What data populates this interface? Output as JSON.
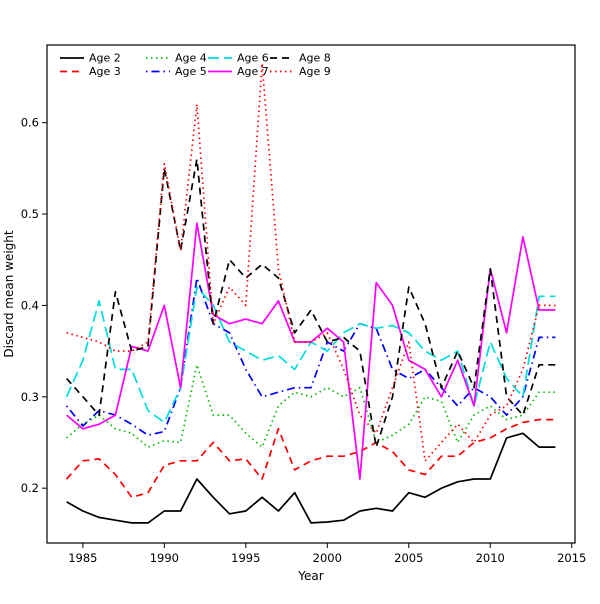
{
  "chart_data": {
    "type": "line",
    "title": "",
    "xlabel": "Year",
    "ylabel": "Discard mean weight",
    "x_start": 1984,
    "x_end": 2014,
    "xlim": [
      1982.8,
      2015.2
    ],
    "ylim": [
      0.14,
      0.685
    ],
    "x_ticks": [
      1985,
      1990,
      1995,
      2000,
      2005,
      2010,
      2015
    ],
    "y_ticks": [
      0.2,
      0.3,
      0.4,
      0.5,
      0.6
    ],
    "grid": false,
    "legend_position": "top-left",
    "series": [
      {
        "name": "Age 2",
        "color": "#000000",
        "dash": "solid",
        "values": [
          0.185,
          0.175,
          0.168,
          0.165,
          0.162,
          0.162,
          0.175,
          0.175,
          0.21,
          0.19,
          0.172,
          0.175,
          0.19,
          0.175,
          0.195,
          0.162,
          0.163,
          0.165,
          0.175,
          0.178,
          0.175,
          0.195,
          0.19,
          0.2,
          0.207,
          0.21,
          0.21,
          0.255,
          0.26,
          0.245,
          0.245
        ]
      },
      {
        "name": "Age 3",
        "color": "#ff0000",
        "dash": "dashed",
        "values": [
          0.21,
          0.23,
          0.232,
          0.215,
          0.19,
          0.195,
          0.225,
          0.23,
          0.23,
          0.25,
          0.23,
          0.232,
          0.21,
          0.265,
          0.22,
          0.23,
          0.235,
          0.235,
          0.24,
          0.25,
          0.24,
          0.22,
          0.215,
          0.235,
          0.235,
          0.25,
          0.255,
          0.265,
          0.272,
          0.275,
          0.275
        ]
      },
      {
        "name": "Age 4",
        "color": "#00bb00",
        "dash": "dotted",
        "values": [
          0.255,
          0.27,
          0.28,
          0.265,
          0.26,
          0.245,
          0.252,
          0.25,
          0.335,
          0.28,
          0.28,
          0.26,
          0.245,
          0.29,
          0.305,
          0.3,
          0.31,
          0.3,
          0.31,
          0.25,
          0.258,
          0.27,
          0.3,
          0.295,
          0.25,
          0.28,
          0.29,
          0.275,
          0.28,
          0.305,
          0.305
        ]
      },
      {
        "name": "Age 5",
        "color": "#0000ff",
        "dash": "dotdash",
        "values": [
          0.29,
          0.268,
          0.285,
          0.28,
          0.27,
          0.258,
          0.262,
          0.31,
          0.43,
          0.38,
          0.37,
          0.33,
          0.3,
          0.305,
          0.31,
          0.31,
          0.36,
          0.35,
          0.38,
          0.375,
          0.33,
          0.32,
          0.33,
          0.31,
          0.29,
          0.31,
          0.3,
          0.28,
          0.3,
          0.365,
          0.365
        ]
      },
      {
        "name": "Age 6",
        "color": "#00dddd",
        "dash": "longdash",
        "values": [
          0.3,
          0.34,
          0.405,
          0.33,
          0.33,
          0.285,
          0.272,
          0.31,
          0.42,
          0.4,
          0.36,
          0.35,
          0.34,
          0.345,
          0.33,
          0.36,
          0.35,
          0.37,
          0.38,
          0.375,
          0.378,
          0.37,
          0.35,
          0.34,
          0.35,
          0.29,
          0.36,
          0.32,
          0.3,
          0.41,
          0.41
        ]
      },
      {
        "name": "Age 7",
        "color": "#ff00ff",
        "dash": "solid",
        "values": [
          0.28,
          0.265,
          0.27,
          0.28,
          0.355,
          0.35,
          0.4,
          0.31,
          0.49,
          0.39,
          0.38,
          0.385,
          0.38,
          0.405,
          0.36,
          0.36,
          0.375,
          0.36,
          0.21,
          0.425,
          0.4,
          0.34,
          0.33,
          0.3,
          0.34,
          0.29,
          0.44,
          0.37,
          0.475,
          0.395,
          0.395
        ]
      },
      {
        "name": "Age 8",
        "color": "#000000",
        "dash": "dashed",
        "values": [
          0.32,
          0.3,
          0.28,
          0.415,
          0.35,
          0.355,
          0.55,
          0.46,
          0.56,
          0.38,
          0.45,
          0.43,
          0.445,
          0.43,
          0.37,
          0.395,
          0.36,
          0.365,
          0.35,
          0.245,
          0.3,
          0.42,
          0.38,
          0.31,
          0.35,
          0.31,
          0.44,
          0.3,
          0.28,
          0.335,
          0.335
        ]
      },
      {
        "name": "Age 9",
        "color": "#ff0000",
        "dash": "dotted",
        "values": [
          0.37,
          0.365,
          0.36,
          0.35,
          0.35,
          0.36,
          0.555,
          0.46,
          0.62,
          0.38,
          0.42,
          0.4,
          0.665,
          0.44,
          0.36,
          0.36,
          0.37,
          0.33,
          0.28,
          0.26,
          0.31,
          0.36,
          0.23,
          0.25,
          0.27,
          0.25,
          0.28,
          0.29,
          0.33,
          0.4,
          0.4
        ]
      }
    ]
  }
}
